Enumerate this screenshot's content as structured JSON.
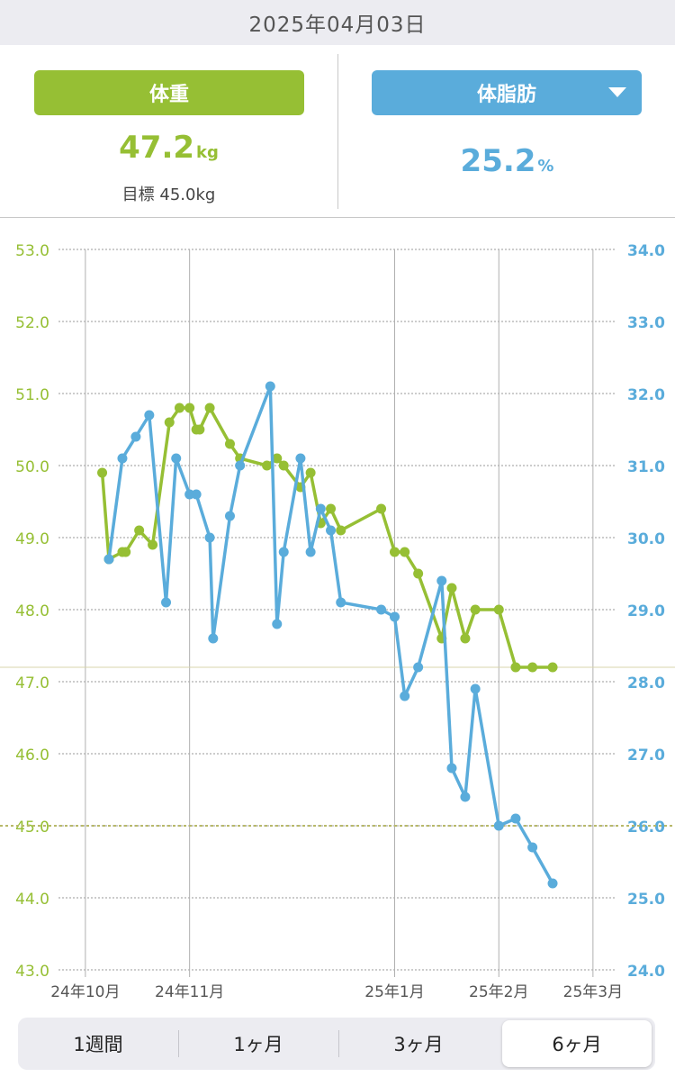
{
  "header": {
    "date": "2025年04月03日"
  },
  "weight_panel": {
    "label": "体重",
    "value": "47.2",
    "unit": "kg",
    "goal": "目標 45.0kg",
    "color": "#96bf34"
  },
  "fat_panel": {
    "label": "体脂肪",
    "value": "25.2",
    "unit": "%",
    "color": "#5aacdb",
    "dropdown_icon": "caret-down-icon"
  },
  "tabs": [
    {
      "label": "1週間",
      "selected": false
    },
    {
      "label": "1ヶ月",
      "selected": false
    },
    {
      "label": "3ヶ月",
      "selected": false
    },
    {
      "label": "6ヶ月",
      "selected": true
    }
  ],
  "chart_data": {
    "type": "line",
    "x_tick_labels": [
      "24年10月",
      "24年11月",
      "25年1月",
      "25年2月",
      "25年3月"
    ],
    "x_tick_dates": [
      "2024-10-01",
      "2024-11-01",
      "2025-01-01",
      "2025-02-01",
      "2025-03-01"
    ],
    "x_range": [
      "2024-09-23",
      "2025-03-08"
    ],
    "y_left": {
      "ticks": [
        "53.0",
        "52.0",
        "51.0",
        "50.0",
        "49.0",
        "48.0",
        "47.0",
        "46.0",
        "45.0",
        "44.0",
        "43.0"
      ],
      "min": 43.0,
      "max": 53.0,
      "color": "#96bf34"
    },
    "y_right": {
      "ticks": [
        "34.0",
        "33.0",
        "32.0",
        "31.0",
        "30.0",
        "29.0",
        "28.0",
        "27.0",
        "26.0",
        "25.0",
        "24.0"
      ],
      "min": 24.0,
      "max": 34.0,
      "color": "#5aacdb"
    },
    "reference_lines": [
      {
        "axis": "left",
        "value": 47.2,
        "style": "solid"
      },
      {
        "axis": "left",
        "value": 45.0,
        "style": "dotted"
      }
    ],
    "grid": true,
    "series": [
      {
        "axis": "left",
        "color": "#96bf34",
        "points": [
          {
            "x": "2024-10-06",
            "y": 49.9
          },
          {
            "x": "2024-10-08",
            "y": 48.7
          },
          {
            "x": "2024-10-12",
            "y": 48.8
          },
          {
            "x": "2024-10-13",
            "y": 48.8
          },
          {
            "x": "2024-10-17",
            "y": 49.1
          },
          {
            "x": "2024-10-21",
            "y": 48.9
          },
          {
            "x": "2024-10-26",
            "y": 50.6
          },
          {
            "x": "2024-10-29",
            "y": 50.8
          },
          {
            "x": "2024-11-01",
            "y": 50.8
          },
          {
            "x": "2024-11-03",
            "y": 50.5
          },
          {
            "x": "2024-11-04",
            "y": 50.5
          },
          {
            "x": "2024-11-07",
            "y": 50.8
          },
          {
            "x": "2024-11-13",
            "y": 50.3
          },
          {
            "x": "2024-11-16",
            "y": 50.1
          },
          {
            "x": "2024-11-24",
            "y": 50.0
          },
          {
            "x": "2024-11-27",
            "y": 50.1
          },
          {
            "x": "2024-11-29",
            "y": 50.0
          },
          {
            "x": "2024-12-04",
            "y": 49.7
          },
          {
            "x": "2024-12-07",
            "y": 49.9
          },
          {
            "x": "2024-12-10",
            "y": 49.2
          },
          {
            "x": "2024-12-13",
            "y": 49.4
          },
          {
            "x": "2024-12-16",
            "y": 49.1
          },
          {
            "x": "2024-12-28",
            "y": 49.4
          },
          {
            "x": "2025-01-01",
            "y": 48.8
          },
          {
            "x": "2025-01-04",
            "y": 48.8
          },
          {
            "x": "2025-01-08",
            "y": 48.5
          },
          {
            "x": "2025-01-15",
            "y": 47.6
          },
          {
            "x": "2025-01-18",
            "y": 48.3
          },
          {
            "x": "2025-01-22",
            "y": 47.6
          },
          {
            "x": "2025-01-25",
            "y": 48.0
          },
          {
            "x": "2025-02-01",
            "y": 48.0
          },
          {
            "x": "2025-02-06",
            "y": 47.2
          },
          {
            "x": "2025-02-11",
            "y": 47.2
          },
          {
            "x": "2025-02-17",
            "y": 47.2
          }
        ]
      },
      {
        "axis": "right",
        "color": "#5aacdb",
        "points": [
          {
            "x": "2024-10-08",
            "y": 29.7
          },
          {
            "x": "2024-10-12",
            "y": 31.1
          },
          {
            "x": "2024-10-16",
            "y": 31.4
          },
          {
            "x": "2024-10-20",
            "y": 31.7
          },
          {
            "x": "2024-10-25",
            "y": 29.1
          },
          {
            "x": "2024-10-28",
            "y": 31.1
          },
          {
            "x": "2024-11-01",
            "y": 30.6
          },
          {
            "x": "2024-11-03",
            "y": 30.6
          },
          {
            "x": "2024-11-07",
            "y": 30.0
          },
          {
            "x": "2024-11-08",
            "y": 28.6
          },
          {
            "x": "2024-11-13",
            "y": 30.3
          },
          {
            "x": "2024-11-16",
            "y": 31.0
          },
          {
            "x": "2024-11-25",
            "y": 32.1
          },
          {
            "x": "2024-11-27",
            "y": 28.8
          },
          {
            "x": "2024-11-29",
            "y": 29.8
          },
          {
            "x": "2024-12-04",
            "y": 31.1
          },
          {
            "x": "2024-12-07",
            "y": 29.8
          },
          {
            "x": "2024-12-10",
            "y": 30.4
          },
          {
            "x": "2024-12-13",
            "y": 30.1
          },
          {
            "x": "2024-12-16",
            "y": 29.1
          },
          {
            "x": "2024-12-28",
            "y": 29.0
          },
          {
            "x": "2025-01-01",
            "y": 28.9
          },
          {
            "x": "2025-01-04",
            "y": 27.8
          },
          {
            "x": "2025-01-08",
            "y": 28.2
          },
          {
            "x": "2025-01-15",
            "y": 29.4
          },
          {
            "x": "2025-01-18",
            "y": 26.8
          },
          {
            "x": "2025-01-22",
            "y": 26.4
          },
          {
            "x": "2025-01-25",
            "y": 27.9
          },
          {
            "x": "2025-02-01",
            "y": 26.0
          },
          {
            "x": "2025-02-06",
            "y": 26.1
          },
          {
            "x": "2025-02-11",
            "y": 25.7
          },
          {
            "x": "2025-02-17",
            "y": 25.2
          }
        ]
      }
    ]
  }
}
